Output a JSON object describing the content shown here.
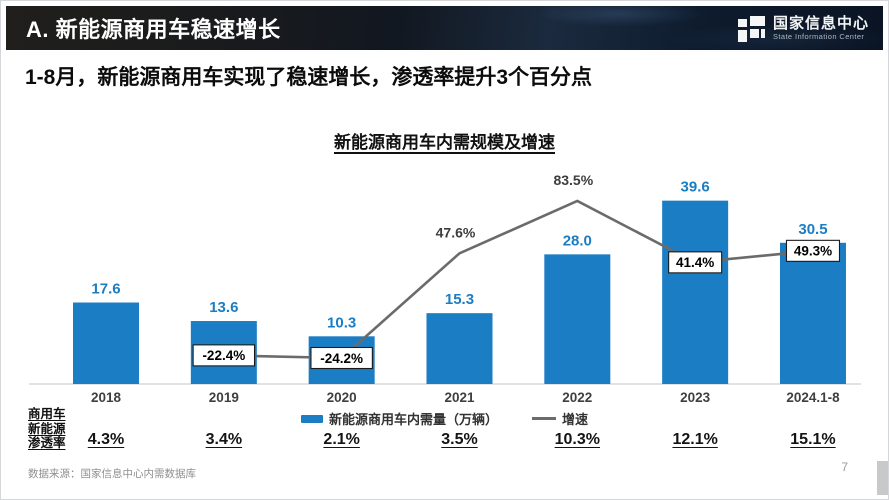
{
  "header": {
    "title": "A. 新能源商用车稳速增长",
    "logo": {
      "name": "国家信息中心",
      "subtitle": "State Information Center"
    }
  },
  "subtitle": "1-8月，新能源商用车实现了稳速增长，渗透率提升3个百分点",
  "chart_data": {
    "type": "bar",
    "title": "新能源商用车内需规模及增速",
    "categories": [
      "2018",
      "2019",
      "2020",
      "2021",
      "2022",
      "2023",
      "2024.1-8"
    ],
    "series": [
      {
        "name": "新能源商用车内需量（万辆）",
        "type": "bar",
        "color": "#1b7dc3",
        "values": [
          17.6,
          13.6,
          10.3,
          15.3,
          28.0,
          39.6,
          30.5
        ],
        "value_labels": [
          "17.6",
          "13.6",
          "10.3",
          "15.3",
          "28.0",
          "39.6",
          "30.5"
        ]
      },
      {
        "name": "增速",
        "type": "line",
        "color": "#6b6b6b",
        "values": [
          null,
          -22.4,
          -24.2,
          47.6,
          83.5,
          41.4,
          49.3
        ],
        "value_labels": [
          "",
          "-22.4%",
          "-24.2%",
          "47.6%",
          "83.5%",
          "41.4%",
          "49.3%"
        ],
        "label_styles": [
          null,
          "box",
          "box",
          "plain",
          "plain",
          "box",
          "box"
        ]
      }
    ],
    "xlabel": "",
    "ylabel": "",
    "ylim_bar": [
      0,
      45
    ],
    "ylim_line": [
      -30,
      90
    ],
    "grid": false,
    "legend_position": "bottom"
  },
  "penetration": {
    "label_lines": [
      "商用车",
      "新能源",
      "渗透率"
    ],
    "values": [
      "4.3%",
      "3.4%",
      "2.1%",
      "3.5%",
      "10.3%",
      "12.1%",
      "15.1%"
    ]
  },
  "footer": {
    "source": "数据来源：国家信息中心内需数据库",
    "page": "7"
  }
}
